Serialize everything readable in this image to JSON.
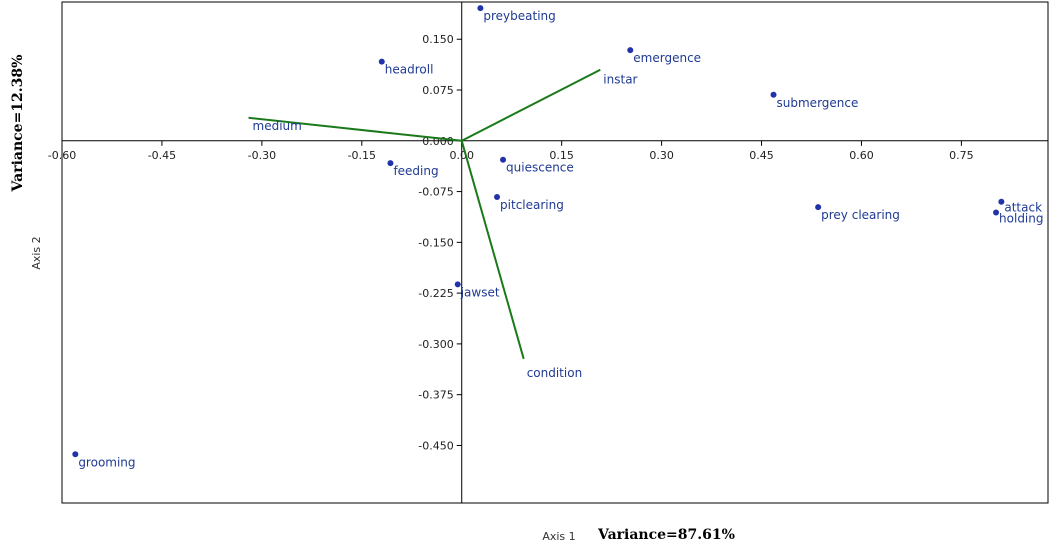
{
  "chart_data": {
    "type": "scatter",
    "title": "",
    "xlabel": "Axis 1",
    "ylabel": "Axis 2",
    "x_variance_label": "Variance=87.61%",
    "y_variance_label": "Variance=12.38%",
    "xlim": [
      -0.6,
      0.88
    ],
    "ylim": [
      -0.535,
      0.205
    ],
    "x_ticks": [
      -0.6,
      -0.45,
      -0.3,
      -0.15,
      0.0,
      0.15,
      0.3,
      0.45,
      0.6,
      0.75
    ],
    "x_tick_labels": [
      "-0.60",
      "-0.45",
      "-0.30",
      "-0.15",
      "0.00",
      "0.15",
      "0.30",
      "0.45",
      "0.60",
      "0.75"
    ],
    "y_ticks": [
      0.15,
      0.075,
      0.0,
      -0.075,
      -0.15,
      -0.225,
      -0.3,
      -0.375,
      -0.45
    ],
    "y_tick_labels": [
      "0.150",
      "0.075",
      "0.000",
      "-0.075",
      "-0.150",
      "-0.225",
      "-0.300",
      "-0.375",
      "-0.450"
    ],
    "grid": false,
    "point_color": "#2233aa",
    "vector_color": "#1a7a1a",
    "points": [
      {
        "label": "preybeating",
        "x": 0.028,
        "y": 0.196
      },
      {
        "label": "emergence",
        "x": 0.253,
        "y": 0.134
      },
      {
        "label": "headroll",
        "x": -0.12,
        "y": 0.117
      },
      {
        "label": "submergence",
        "x": 0.468,
        "y": 0.068
      },
      {
        "label": "feeding",
        "x": -0.107,
        "y": -0.033
      },
      {
        "label": "quiescence",
        "x": 0.062,
        "y": -0.028
      },
      {
        "label": "pitclearing",
        "x": 0.053,
        "y": -0.083
      },
      {
        "label": "prey clearing",
        "x": 0.535,
        "y": -0.098
      },
      {
        "label": "attack",
        "x": 0.81,
        "y": -0.09
      },
      {
        "label": "holding",
        "x": 0.802,
        "y": -0.106
      },
      {
        "label": "jawset",
        "x": -0.006,
        "y": -0.212
      },
      {
        "label": "grooming",
        "x": -0.58,
        "y": -0.463
      }
    ],
    "vectors": [
      {
        "label": "instar",
        "x": 0.208,
        "y": 0.105
      },
      {
        "label": "medium",
        "x": -0.32,
        "y": 0.034
      },
      {
        "label": "condition",
        "x": 0.093,
        "y": -0.322
      }
    ]
  }
}
